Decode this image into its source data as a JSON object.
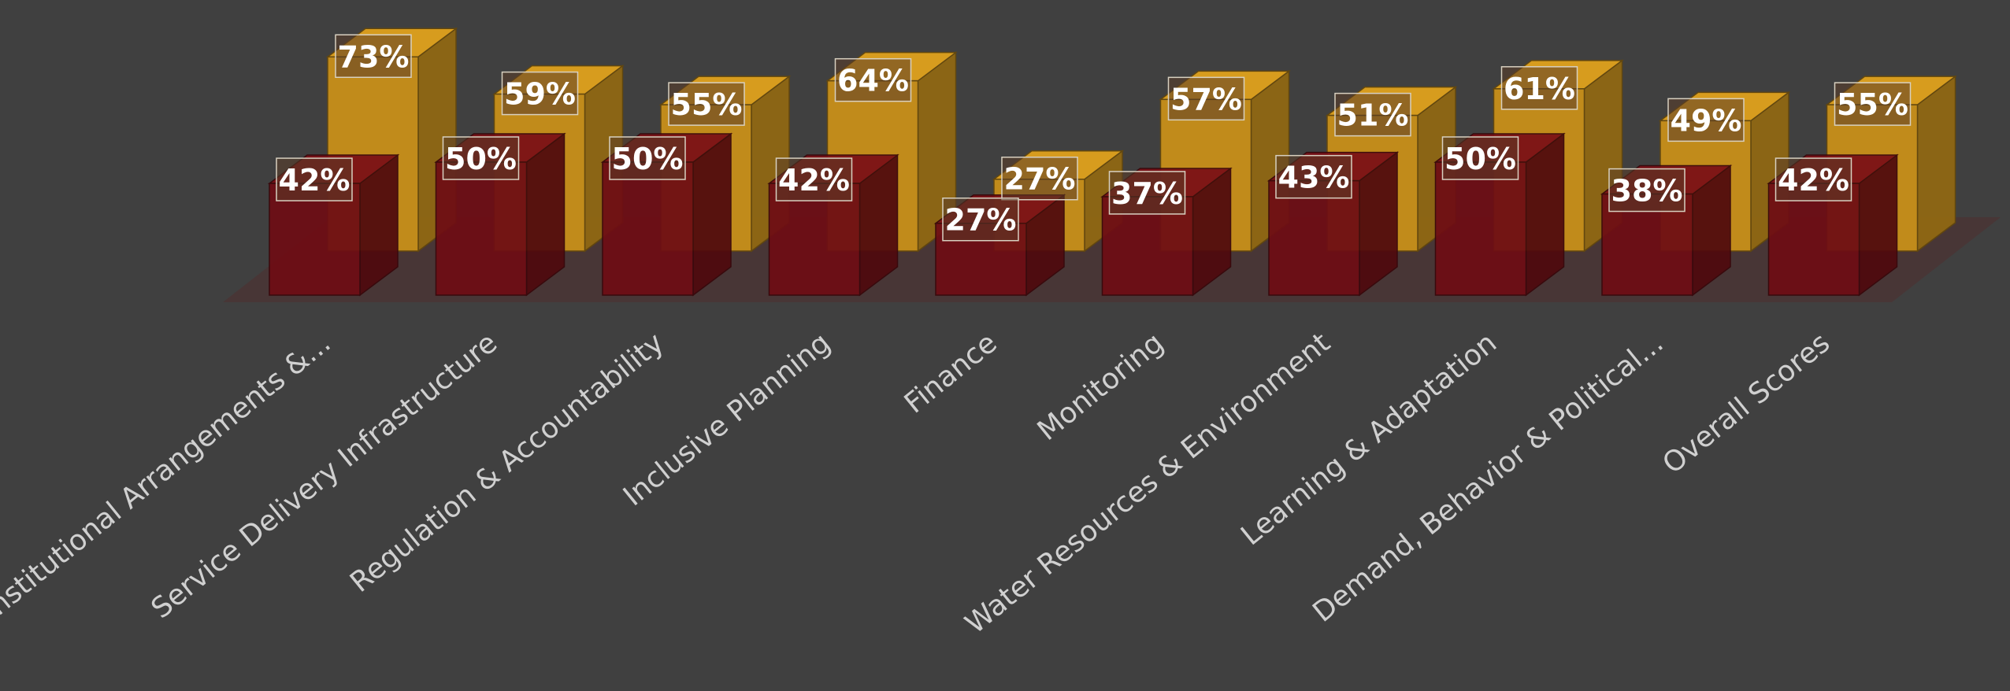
{
  "chart_data": {
    "type": "bar",
    "style": "3d-clustered",
    "categories": [
      "Institutional Arrangements &...",
      "Service Delivery Infrastructure",
      "Regulation & Accountability",
      "Inclusive Planning",
      "Finance",
      "Monitoring",
      "Water Resources & Environment",
      "Learning &  Adaptation",
      "Demand,  Behavior & Political...",
      "Overall Scores"
    ],
    "series": [
      {
        "color": "#6e0d14",
        "values": [
          42,
          50,
          50,
          42,
          27,
          37,
          43,
          50,
          38,
          42
        ],
        "labels": [
          "42%",
          "50%",
          "50%",
          "42%",
          "27%",
          "37%",
          "43%",
          "50%",
          "38%",
          "42%"
        ]
      },
      {
        "color": "#c8901a",
        "values": [
          73,
          59,
          55,
          64,
          27,
          57,
          51,
          61,
          49,
          55
        ],
        "labels": [
          "73%",
          "59%",
          "55%",
          "64%",
          "27%",
          "57%",
          "51%",
          "61%",
          "49%",
          "55%"
        ]
      }
    ],
    "ylim": [
      0,
      100
    ],
    "unit": "%",
    "grid": false,
    "legend": "none",
    "background": "#404040"
  }
}
